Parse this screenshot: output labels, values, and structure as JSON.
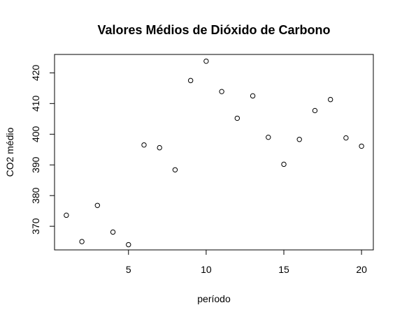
{
  "chart_data": {
    "type": "scatter",
    "title": "Valores Médios de Dióxido de Carbono",
    "xlabel": "período",
    "ylabel": "CO2 médio",
    "xlim": [
      0.24,
      20.76
    ],
    "ylim": [
      362.3,
      426.0
    ],
    "xticks": [
      5,
      10,
      15,
      20
    ],
    "yticks": [
      370,
      380,
      390,
      400,
      410,
      420
    ],
    "grid": false,
    "x": [
      1,
      2,
      3,
      4,
      5,
      6,
      7,
      8,
      9,
      10,
      11,
      12,
      13,
      14,
      15,
      16,
      17,
      18,
      19,
      20
    ],
    "y": [
      373.6,
      365.0,
      376.8,
      368.1,
      364.0,
      396.5,
      395.6,
      388.4,
      417.5,
      423.8,
      413.9,
      405.2,
      412.5,
      399.0,
      390.2,
      398.3,
      407.7,
      411.3,
      398.8,
      396.1
    ]
  }
}
